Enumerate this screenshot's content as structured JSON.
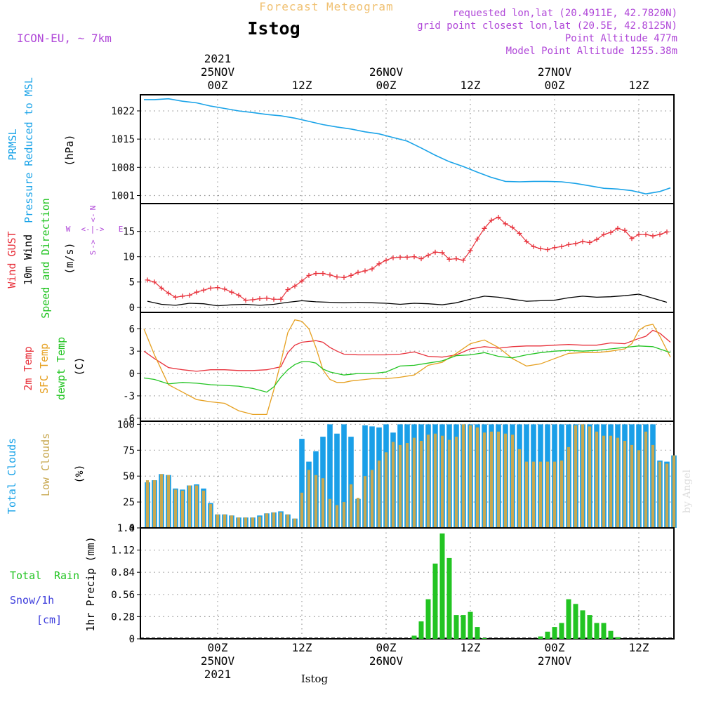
{
  "header": {
    "product_title": "Forecast Meteogram",
    "location": "Istog",
    "model": "ICON-EU, ~ 7km",
    "requested": "requested lon,lat (20.4911E, 42.7820N)",
    "grid_point": "grid point closest lon,lat (20.5E, 42.8125N)",
    "point_altitude": "Point Altitude 477m",
    "model_altitude": "Model Point Altitude 1255.38m"
  },
  "footer": {
    "location_label": "Istog",
    "watermark": "by Angel"
  },
  "colors": {
    "pressure": "#1aa3e8",
    "gust": "#e8323c",
    "wind_speed": "#000000",
    "temp_2m": "#e8323c",
    "temp_sfc": "#e6a020",
    "dewpt": "#22c422",
    "clouds_total": "#1a9fe8",
    "clouds_low": "#c8a850",
    "rain": "#22c422",
    "snow": "#3c3cdc",
    "header_purple": "#b048d8",
    "header_orange": "#f0c070"
  },
  "time_axis": {
    "top_labels": [
      {
        "x": 0,
        "lines": [
          "2021",
          "25NOV",
          "00Z"
        ]
      },
      {
        "x": 12,
        "lines": [
          "12Z"
        ]
      },
      {
        "x": 24,
        "lines": [
          "26NOV",
          "00Z"
        ]
      },
      {
        "x": 36,
        "lines": [
          "12Z"
        ]
      },
      {
        "x": 48,
        "lines": [
          "27NOV",
          "00Z"
        ]
      },
      {
        "x": 60,
        "lines": [
          "12Z"
        ]
      }
    ],
    "bottom_labels": [
      {
        "x": 0,
        "lines": [
          "00Z",
          "25NOV",
          "2021"
        ]
      },
      {
        "x": 12,
        "lines": [
          "12Z"
        ]
      },
      {
        "x": 24,
        "lines": [
          "00Z",
          "26NOV"
        ]
      },
      {
        "x": 36,
        "lines": [
          "12Z"
        ]
      },
      {
        "x": 48,
        "lines": [
          "00Z",
          "27NOV"
        ]
      },
      {
        "x": 60,
        "lines": [
          "12Z"
        ]
      }
    ]
  },
  "chart_data": [
    {
      "type": "line",
      "xlim": [
        -11,
        65
      ],
      "ylim": [
        999,
        1026
      ],
      "yticks": [
        "1001",
        "1008",
        "1015",
        "1022"
      ],
      "ylabel_lines": [
        "PRMSL",
        "Pressure Reduced to MSL"
      ],
      "unit": "(hPa)",
      "series": [
        {
          "x": [
            -10.5,
            -9,
            -7,
            -5,
            -3,
            -1,
            1,
            3,
            5,
            7,
            9,
            11,
            13,
            15,
            17,
            19,
            21,
            23,
            25,
            27,
            29,
            31,
            33,
            35,
            37,
            39,
            41,
            43,
            45,
            47,
            49,
            51,
            53,
            55,
            57,
            59,
            61,
            63,
            64.5
          ],
          "values": [
            1024.8,
            1024.8,
            1025.0,
            1024.4,
            1024.0,
            1023.2,
            1022.6,
            1022.0,
            1021.6,
            1021.1,
            1020.8,
            1020.2,
            1019.4,
            1018.6,
            1018.0,
            1017.5,
            1016.8,
            1016.3,
            1015.4,
            1014.5,
            1012.8,
            1011.0,
            1009.4,
            1008.2,
            1006.8,
            1005.5,
            1004.5,
            1004.4,
            1004.5,
            1004.5,
            1004.4,
            1004.0,
            1003.4,
            1002.8,
            1002.6,
            1002.2,
            1001.4,
            1002.0,
            1002.9
          ]
        }
      ]
    },
    {
      "type": "line",
      "xlim": [
        -11,
        65
      ],
      "ylim": [
        -1,
        20.5
      ],
      "yticks": [
        "0",
        "5",
        "10",
        "15"
      ],
      "ylabel_lines": [
        "Wind GUST",
        "10m Wind",
        "Speed and Direction"
      ],
      "unit": "(m/s)",
      "compass": {
        "n": "N",
        "s": "S",
        "w": "W",
        "e": "E"
      },
      "series": [
        {
          "name": "gust",
          "x": [
            -10,
            -9,
            -8,
            -7,
            -6,
            -5,
            -4,
            -3,
            -2,
            -1,
            0,
            1,
            2,
            3,
            4,
            5,
            6,
            7,
            8,
            9,
            10,
            11,
            12,
            13,
            14,
            15,
            16,
            17,
            18,
            19,
            20,
            21,
            22,
            23,
            24,
            25,
            26,
            27,
            28,
            29,
            30,
            31,
            32,
            33,
            34,
            35,
            36,
            37,
            38,
            39,
            40,
            41,
            42,
            43,
            44,
            45,
            46,
            47,
            48,
            49,
            50,
            51,
            52,
            53,
            54,
            55,
            56,
            57,
            58,
            59,
            60,
            61,
            62,
            63,
            64
          ],
          "values": [
            5.4,
            5.0,
            3.8,
            2.8,
            2.0,
            2.2,
            2.4,
            3.0,
            3.4,
            3.8,
            3.9,
            3.6,
            3.0,
            2.4,
            1.4,
            1.5,
            1.7,
            1.8,
            1.6,
            1.6,
            3.5,
            4.2,
            5.2,
            6.3,
            6.7,
            6.7,
            6.4,
            6.0,
            5.9,
            6.3,
            6.9,
            7.2,
            7.6,
            8.6,
            9.3,
            9.8,
            9.9,
            9.9,
            10.0,
            9.6,
            10.3,
            10.9,
            10.8,
            9.5,
            9.6,
            9.3,
            11.2,
            13.5,
            15.6,
            17.2,
            17.8,
            16.5,
            15.8,
            14.6,
            13.0,
            12.0,
            11.6,
            11.4,
            11.8,
            12.0,
            12.4,
            12.6,
            13.0,
            12.8,
            13.4,
            14.4,
            14.8,
            15.6,
            15.2,
            13.6,
            14.4,
            14.4,
            14.1,
            14.4,
            14.9
          ]
        },
        {
          "name": "wind",
          "x": [
            -10,
            -8,
            -6,
            -4,
            -2,
            0,
            2,
            4,
            6,
            8,
            10,
            12,
            14,
            16,
            18,
            20,
            22,
            24,
            26,
            28,
            30,
            32,
            34,
            36,
            38,
            40,
            42,
            44,
            46,
            48,
            50,
            52,
            54,
            56,
            58,
            60,
            62,
            64
          ],
          "values": [
            1.2,
            0.6,
            0.4,
            0.8,
            0.7,
            0.3,
            0.5,
            0.6,
            0.4,
            0.6,
            1.0,
            1.3,
            1.1,
            1.0,
            0.9,
            1.0,
            0.9,
            0.8,
            0.6,
            0.8,
            0.7,
            0.5,
            0.9,
            1.6,
            2.2,
            2.0,
            1.6,
            1.2,
            1.3,
            1.4,
            1.9,
            2.2,
            2.0,
            2.1,
            2.3,
            2.6,
            1.8,
            1.0
          ]
        }
      ]
    },
    {
      "type": "line",
      "xlim": [
        -11,
        65
      ],
      "ylim": [
        -6.4,
        8.2
      ],
      "yticks": [
        "-6",
        "-3",
        "0",
        "3",
        "6"
      ],
      "ylabel_lines": [
        "2m Temp",
        "SFC Temp",
        "dewpt Temp"
      ],
      "unit": "(C)",
      "series": [
        {
          "name": "2m Temp",
          "x": [
            -10.5,
            -9,
            -7,
            -5,
            -3,
            -1,
            1,
            3,
            5,
            7,
            9,
            10,
            11,
            12,
            13,
            14,
            15,
            16,
            17,
            18,
            20,
            22,
            24,
            26,
            28,
            30,
            32,
            34,
            36,
            38,
            40,
            42,
            44,
            46,
            48,
            50,
            52,
            54,
            56,
            58,
            60,
            61,
            62,
            63,
            64.5
          ],
          "values": [
            3.0,
            2.0,
            0.8,
            0.5,
            0.3,
            0.5,
            0.5,
            0.4,
            0.4,
            0.5,
            0.9,
            2.8,
            3.8,
            4.2,
            4.3,
            4.4,
            4.2,
            3.5,
            3.0,
            2.6,
            2.5,
            2.5,
            2.5,
            2.6,
            2.9,
            2.3,
            2.2,
            2.5,
            3.3,
            3.6,
            3.4,
            3.6,
            3.7,
            3.7,
            3.8,
            3.9,
            3.8,
            3.8,
            4.1,
            4.0,
            4.7,
            5.0,
            5.8,
            5.4,
            4.2
          ]
        },
        {
          "name": "SFC Temp",
          "x": [
            -10.5,
            -9,
            -7,
            -5,
            -3,
            -1,
            1,
            3,
            5,
            7,
            8,
            9,
            10,
            11,
            12,
            13,
            14,
            15,
            16,
            17,
            18,
            19,
            20,
            22,
            24,
            26,
            28,
            30,
            32,
            34,
            36,
            38,
            40,
            42,
            44,
            46,
            48,
            50,
            52,
            54,
            56,
            58,
            59,
            60,
            61,
            62,
            63,
            64.5
          ],
          "values": [
            6.0,
            2.5,
            -1.5,
            -2.5,
            -3.5,
            -3.8,
            -4.0,
            -5.0,
            -5.5,
            -5.5,
            -2.2,
            1.5,
            5.5,
            7.2,
            7.0,
            6.0,
            3.5,
            0.5,
            -0.8,
            -1.2,
            -1.2,
            -1.0,
            -0.9,
            -0.7,
            -0.7,
            -0.5,
            -0.2,
            1.1,
            1.5,
            2.7,
            4.0,
            4.5,
            3.5,
            2.0,
            1.0,
            1.3,
            2.0,
            2.7,
            2.8,
            2.8,
            3.0,
            3.3,
            4.0,
            5.8,
            6.4,
            6.6,
            5.0,
            2.2
          ]
        },
        {
          "name": "dewpt Temp",
          "x": [
            -10.5,
            -9,
            -7,
            -5,
            -3,
            -1,
            1,
            3,
            5,
            7,
            8,
            9,
            10,
            11,
            12,
            13,
            14,
            15,
            16,
            17,
            18,
            20,
            22,
            24,
            26,
            28,
            30,
            32,
            34,
            36,
            38,
            40,
            42,
            44,
            46,
            48,
            50,
            52,
            54,
            56,
            58,
            60,
            62,
            64.5
          ],
          "values": [
            -0.6,
            -0.8,
            -1.4,
            -1.2,
            -1.3,
            -1.5,
            -1.6,
            -1.7,
            -2.0,
            -2.5,
            -1.8,
            -0.5,
            0.5,
            1.2,
            1.6,
            1.6,
            1.4,
            0.6,
            0.2,
            0.0,
            -0.2,
            0.0,
            0.0,
            0.2,
            1.0,
            1.1,
            1.4,
            1.7,
            2.4,
            2.5,
            2.8,
            2.3,
            2.1,
            2.5,
            2.8,
            3.0,
            3.1,
            3.0,
            3.1,
            3.3,
            3.5,
            3.7,
            3.6,
            2.8
          ]
        }
      ]
    },
    {
      "type": "bar",
      "xlim": [
        -11,
        65
      ],
      "ylim": [
        0,
        103
      ],
      "yticks": [
        "0",
        "25",
        "50",
        "75",
        "100"
      ],
      "ylabel_lines": [
        "Total Clouds",
        "Low Clouds"
      ],
      "unit": "(%)",
      "x": [
        -10,
        -9,
        -8,
        -7,
        -6,
        -5,
        -4,
        -3,
        -2,
        -1,
        0,
        1,
        2,
        3,
        4,
        5,
        6,
        7,
        8,
        9,
        10,
        11,
        12,
        13,
        14,
        15,
        16,
        17,
        18,
        19,
        20,
        21,
        22,
        23,
        24,
        25,
        26,
        27,
        28,
        29,
        30,
        31,
        32,
        33,
        34,
        35,
        36,
        37,
        38,
        39,
        40,
        41,
        42,
        43,
        44,
        45,
        46,
        47,
        48,
        49,
        50,
        51,
        52,
        53,
        54,
        55,
        56,
        57,
        58,
        59,
        60,
        61,
        62,
        63,
        64,
        65
      ],
      "series": [
        {
          "name": "Total Clouds",
          "values": [
            44,
            46,
            52,
            51,
            38,
            37,
            41,
            42,
            38,
            24,
            13,
            13,
            12,
            10,
            10,
            10,
            12,
            14,
            15,
            16,
            13,
            9,
            86,
            64,
            74,
            88,
            100,
            91,
            100,
            88,
            28,
            99,
            98,
            97,
            100,
            92,
            100,
            100,
            100,
            100,
            100,
            100,
            100,
            100,
            100,
            100,
            100,
            100,
            100,
            100,
            100,
            100,
            100,
            100,
            100,
            100,
            100,
            100,
            100,
            100,
            100,
            100,
            100,
            100,
            100,
            100,
            100,
            100,
            100,
            100,
            100,
            100,
            100,
            65,
            64,
            70
          ]
        },
        {
          "name": "Low Clouds",
          "values": [
            46,
            46,
            52,
            51,
            37,
            36,
            41,
            41,
            36,
            23,
            13,
            13,
            12,
            10,
            10,
            10,
            11,
            14,
            15,
            15,
            13,
            9,
            34,
            56,
            51,
            48,
            28,
            22,
            25,
            42,
            29,
            50,
            56,
            65,
            73,
            83,
            80,
            82,
            87,
            84,
            90,
            91,
            89,
            85,
            88,
            100,
            99,
            97,
            92,
            93,
            93,
            91,
            90,
            76,
            64,
            64,
            64,
            64,
            64,
            65,
            78,
            99,
            100,
            98,
            93,
            89,
            89,
            87,
            84,
            80,
            75,
            93,
            80,
            64,
            62,
            70
          ]
        }
      ]
    },
    {
      "type": "bar",
      "xlim": [
        -11,
        65
      ],
      "ylim": [
        0,
        1.4
      ],
      "yticks": [
        "0",
        "0.28",
        "0.56",
        "0.84",
        "1.12",
        "1.4"
      ],
      "ylabel_lines": [
        "Total",
        "Rain",
        "Snow/1h",
        "[cm]"
      ],
      "unit": "1hr Precip (mm)",
      "series": [
        {
          "name": "Rain",
          "x": [
            28,
            29,
            30,
            31,
            32,
            33,
            34,
            35,
            36,
            37,
            38,
            46,
            47,
            48,
            49,
            50,
            51,
            52,
            53,
            54,
            55,
            56,
            57
          ],
          "values": [
            0.04,
            0.22,
            0.5,
            0.95,
            1.33,
            1.02,
            0.3,
            0.3,
            0.34,
            0.15,
            0.01,
            0.03,
            0.09,
            0.15,
            0.2,
            0.5,
            0.44,
            0.36,
            0.3,
            0.2,
            0.2,
            0.1,
            0.02
          ]
        }
      ]
    }
  ]
}
